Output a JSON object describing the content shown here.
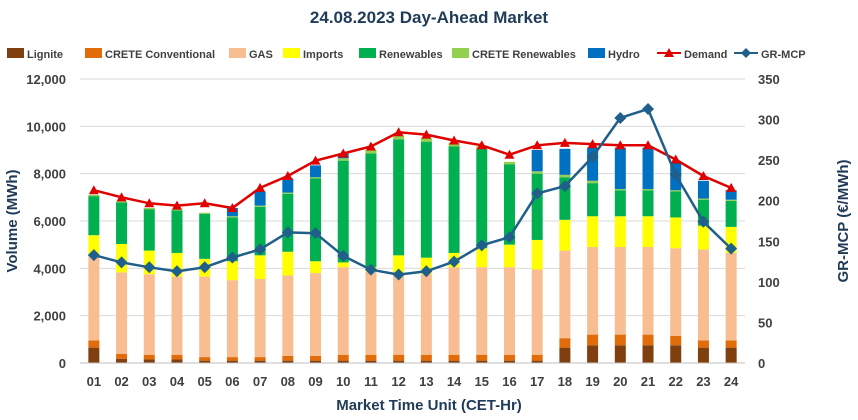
{
  "chart_data": {
    "type": "bar",
    "subtype": "stacked-bar-with-lines",
    "title": "24.08.2023  Day-Ahead Market",
    "xlabel": "Market Time Unit (CET-Hr)",
    "ylabel": "Volume (MWh)",
    "y2label": "GR-MCP (€/MWh)",
    "ylim": [
      0,
      12000
    ],
    "y2lim": [
      0,
      350
    ],
    "yticks": [
      "0",
      "2,000",
      "4,000",
      "6,000",
      "8,000",
      "10,000",
      "12,000"
    ],
    "y2ticks": [
      "0",
      "50",
      "100",
      "150",
      "200",
      "250",
      "300",
      "350"
    ],
    "grid": true,
    "legend_position": "top",
    "categories": [
      "01",
      "02",
      "03",
      "04",
      "05",
      "06",
      "07",
      "08",
      "09",
      "10",
      "11",
      "12",
      "13",
      "14",
      "15",
      "16",
      "17",
      "18",
      "19",
      "20",
      "21",
      "22",
      "23",
      "24"
    ],
    "series": [
      {
        "name": "Lignite",
        "kind": "bar",
        "color": "#7f3f0f",
        "values": [
          650,
          180,
          150,
          150,
          100,
          100,
          100,
          100,
          100,
          100,
          100,
          100,
          100,
          100,
          100,
          100,
          100,
          650,
          750,
          750,
          750,
          750,
          650,
          650
        ]
      },
      {
        "name": "CRETE Conventional",
        "kind": "bar",
        "color": "#e36c0a",
        "values": [
          300,
          200,
          200,
          200,
          150,
          150,
          150,
          200,
          200,
          250,
          250,
          250,
          250,
          250,
          250,
          250,
          250,
          400,
          450,
          450,
          450,
          400,
          300,
          300
        ]
      },
      {
        "name": "GAS",
        "kind": "bar",
        "color": "#f8be92",
        "values": [
          3550,
          3450,
          3400,
          3300,
          3400,
          3250,
          3300,
          3400,
          3500,
          3700,
          3500,
          3400,
          3400,
          3700,
          3700,
          3700,
          3600,
          3700,
          3700,
          3700,
          3700,
          3700,
          3850,
          3700
        ]
      },
      {
        "name": "Imports",
        "kind": "bar",
        "color": "#ffff00",
        "values": [
          900,
          1200,
          1000,
          1000,
          750,
          800,
          1000,
          1000,
          500,
          200,
          200,
          800,
          700,
          600,
          800,
          950,
          1250,
          1300,
          1300,
          1300,
          1300,
          1300,
          1000,
          1100
        ]
      },
      {
        "name": "Renewables",
        "kind": "bar",
        "color": "#00b050",
        "values": [
          1650,
          1750,
          1750,
          1800,
          1900,
          1850,
          2050,
          2450,
          3500,
          4300,
          4800,
          4900,
          4900,
          4500,
          4200,
          3400,
          2800,
          1800,
          1400,
          1100,
          1100,
          1100,
          1100,
          1100
        ]
      },
      {
        "name": "CRETE Renewables",
        "kind": "bar",
        "color": "#92d050",
        "values": [
          50,
          50,
          50,
          50,
          50,
          50,
          50,
          50,
          50,
          100,
          150,
          150,
          150,
          150,
          100,
          100,
          100,
          100,
          100,
          50,
          50,
          50,
          50,
          50
        ]
      },
      {
        "name": "Hydro",
        "kind": "bar",
        "color": "#0070c0",
        "values": [
          0,
          0,
          0,
          0,
          0,
          350,
          600,
          600,
          500,
          200,
          0,
          0,
          0,
          0,
          0,
          0,
          900,
          1100,
          1400,
          1750,
          1750,
          1200,
          750,
          400
        ]
      },
      {
        "name": "Demand",
        "kind": "line",
        "axis": "left",
        "color": "#e00000",
        "marker": "triangle",
        "values": [
          7300,
          7000,
          6750,
          6650,
          6750,
          6550,
          7400,
          7900,
          8550,
          8850,
          9150,
          9750,
          9650,
          9400,
          9200,
          8800,
          9200,
          9300,
          9250,
          9200,
          9200,
          8600,
          7900,
          7400
        ]
      },
      {
        "name": "GR-MCP",
        "kind": "line",
        "axis": "right",
        "color": "#1f5f8a",
        "marker": "diamond",
        "values": [
          133,
          124,
          118,
          113,
          118,
          130,
          140,
          161,
          160,
          132,
          115,
          109,
          113,
          125,
          145,
          155,
          209,
          218,
          254,
          302,
          313,
          232,
          174,
          141
        ]
      }
    ]
  }
}
